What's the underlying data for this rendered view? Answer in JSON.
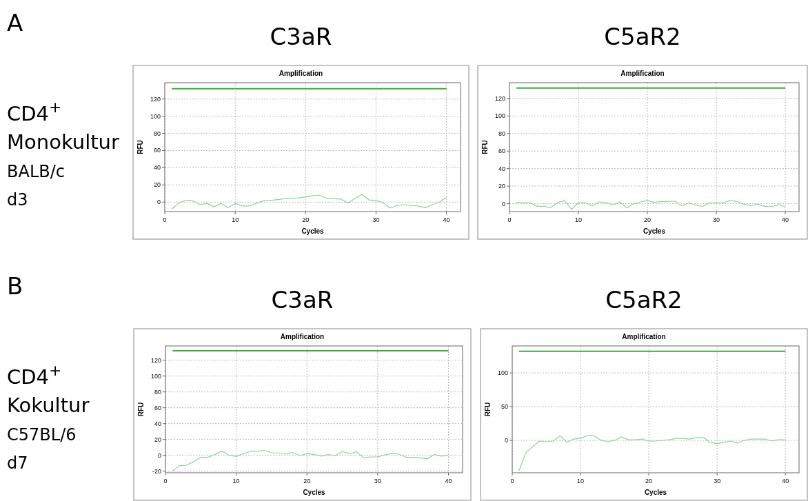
{
  "chart_data": [
    {
      "type": "line",
      "title": "Amplification",
      "subtitle": "C3aR",
      "xlabel": "Cycles",
      "ylabel": "RFU",
      "annotations": [
        "A",
        "CD4$^{+}$\nMonokultur\nBALB/c\nd3"
      ],
      "xlim": [
        0,
        42
      ],
      "xticks": [
        0,
        10,
        20,
        30,
        40
      ],
      "ylim": [
        -11,
        139
      ],
      "yticks": [
        0,
        20,
        40,
        60,
        80,
        100,
        120
      ],
      "grid": true,
      "ref_lines": [
        {
          "axis": "y",
          "value": 132,
          "color": "#3daa3d"
        }
      ],
      "x": [
        1,
        2,
        3,
        4,
        5,
        6,
        7,
        8,
        9,
        10,
        11,
        12,
        13,
        14,
        15,
        16,
        17,
        18,
        19,
        20,
        21,
        22,
        23,
        24,
        25,
        26,
        27,
        28,
        29,
        30,
        31,
        32,
        33,
        34,
        35,
        36,
        37,
        38,
        39,
        40
      ],
      "series": [
        {
          "color": "#8fd48f",
          "values": [
            -8,
            -1,
            2,
            1.5,
            -3,
            -1.5,
            -5.5,
            -1.5,
            -6.5,
            -1.5,
            -4.5,
            -4.5,
            -1.5,
            1.5,
            2,
            3,
            4,
            4.5,
            5,
            6,
            7.5,
            8,
            4.5,
            4,
            3.5,
            -1,
            4,
            9,
            2.5,
            2,
            -0.5,
            -7,
            -4,
            -3,
            -4,
            -4.5,
            -6.5,
            -3,
            0,
            5.5
          ]
        }
      ]
    },
    {
      "type": "line",
      "title": "Amplification",
      "subtitle": "C5aR2",
      "xlabel": "Cycles",
      "ylabel": "RFU",
      "xlim": [
        0,
        42
      ],
      "xticks": [
        0,
        10,
        20,
        30,
        40
      ],
      "ylim": [
        -9,
        138
      ],
      "yticks": [
        0,
        20,
        40,
        60,
        80,
        100,
        120
      ],
      "grid": true,
      "ref_lines": [
        {
          "axis": "y",
          "value": 132,
          "color": "#3daa3d"
        }
      ],
      "x": [
        1,
        2,
        3,
        4,
        5,
        6,
        7,
        8,
        9,
        10,
        11,
        12,
        13,
        14,
        15,
        16,
        17,
        18,
        19,
        20,
        21,
        22,
        23,
        24,
        25,
        26,
        27,
        28,
        29,
        30,
        31,
        32,
        33,
        34,
        35,
        36,
        37,
        38,
        39,
        40
      ],
      "series": [
        {
          "color": "#8fd48f",
          "values": [
            1.5,
            1,
            1,
            -3,
            -3,
            -4.5,
            1.5,
            3.5,
            -6.5,
            1,
            1,
            -2.5,
            2,
            1.5,
            -1.5,
            2,
            -5,
            0,
            2,
            3.5,
            1.5,
            2.5,
            2.5,
            3,
            -2.5,
            1,
            -1.5,
            -3,
            1,
            1,
            1,
            3.5,
            2.5,
            -0.5,
            -2.5,
            -0.5,
            -3,
            -3.5,
            -1,
            -3.5
          ]
        }
      ]
    },
    {
      "type": "line",
      "title": "Amplification",
      "subtitle": "C3aR",
      "xlabel": "Cycles",
      "ylabel": "RFU",
      "annotations": [
        "B",
        "CD4$^{+}$\nKokultur\nC57BL/6\nd7"
      ],
      "xlim": [
        0,
        42
      ],
      "xticks": [
        0,
        10,
        20,
        30,
        40
      ],
      "ylim": [
        -22,
        138
      ],
      "yticks": [
        -20,
        0,
        20,
        40,
        60,
        80,
        100,
        120
      ],
      "grid": true,
      "ref_lines": [
        {
          "axis": "y",
          "value": 132,
          "color": "#3daa3d"
        }
      ],
      "x": [
        1,
        2,
        3,
        4,
        5,
        6,
        7,
        8,
        9,
        10,
        11,
        12,
        13,
        14,
        15,
        16,
        17,
        18,
        19,
        20,
        21,
        22,
        23,
        24,
        25,
        26,
        27,
        28,
        29,
        30,
        31,
        32,
        33,
        34,
        35,
        36,
        37,
        38,
        39,
        40
      ],
      "series": [
        {
          "color": "#8fd48f",
          "values": [
            -20,
            -13,
            -12.5,
            -8,
            -2.5,
            -2.5,
            1,
            5.5,
            0,
            -1.5,
            2,
            5,
            5,
            6,
            3,
            3,
            1.5,
            3.5,
            -0.5,
            2.5,
            1,
            -1,
            1,
            -0.5,
            5,
            2,
            4.5,
            -3,
            -2,
            -2,
            0.5,
            2.5,
            1.5,
            -2.5,
            -2.5,
            -3,
            -4.5,
            1,
            -1,
            0
          ]
        }
      ]
    },
    {
      "type": "line",
      "title": "Amplification",
      "subtitle": "C5aR2",
      "xlabel": "Cycles",
      "ylabel": "RFU",
      "xlim": [
        0,
        42
      ],
      "xticks": [
        0,
        10,
        20,
        30,
        40
      ],
      "ylim": [
        -48,
        140
      ],
      "yticks": [
        0,
        50,
        100
      ],
      "grid": true,
      "ref_lines": [
        {
          "axis": "y",
          "value": 132,
          "color": "#3daa3d"
        }
      ],
      "x": [
        1,
        2,
        3,
        4,
        5,
        6,
        7,
        8,
        9,
        10,
        11,
        12,
        13,
        14,
        15,
        16,
        17,
        18,
        19,
        20,
        21,
        22,
        23,
        24,
        25,
        26,
        27,
        28,
        29,
        30,
        31,
        32,
        33,
        34,
        35,
        36,
        37,
        38,
        39,
        40
      ],
      "series": [
        {
          "color": "#8fd48f",
          "values": [
            -45,
            -18,
            -9,
            -1,
            -2,
            -1,
            7,
            -3,
            2,
            3,
            7,
            7,
            0,
            -2,
            0,
            5,
            1,
            1,
            2,
            -1,
            -1,
            0,
            1,
            3,
            3,
            2,
            4,
            4,
            -3,
            -5,
            -3,
            -1,
            -4,
            0,
            2,
            2,
            2,
            -1,
            1,
            1
          ]
        }
      ]
    }
  ]
}
